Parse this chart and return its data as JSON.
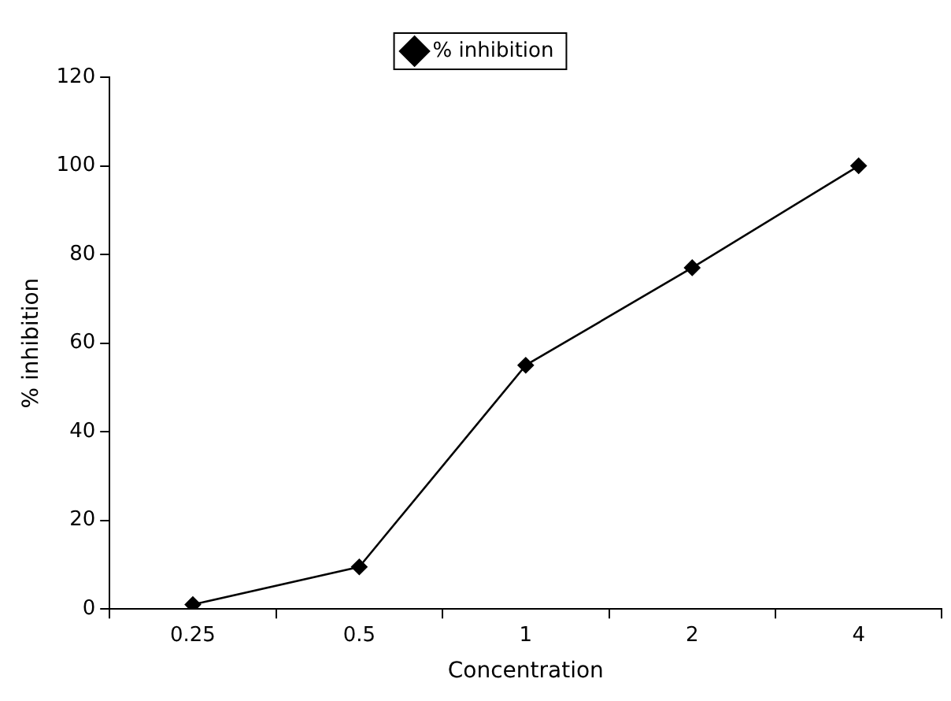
{
  "chart_data": {
    "type": "line",
    "xlabel": "Concentration",
    "ylabel": "% inhibition",
    "categories": [
      "0.25",
      "0.5",
      "1",
      "2",
      "4"
    ],
    "series": [
      {
        "name": "% inhibition",
        "color": "#000000",
        "values": [
          1,
          9.5,
          55,
          77,
          100
        ]
      }
    ],
    "ylim": [
      0,
      120
    ],
    "yticks": [
      0,
      20,
      40,
      60,
      80,
      100,
      120
    ],
    "grid": false,
    "legend": "top",
    "marker": "diamond",
    "line_style": "solid"
  }
}
